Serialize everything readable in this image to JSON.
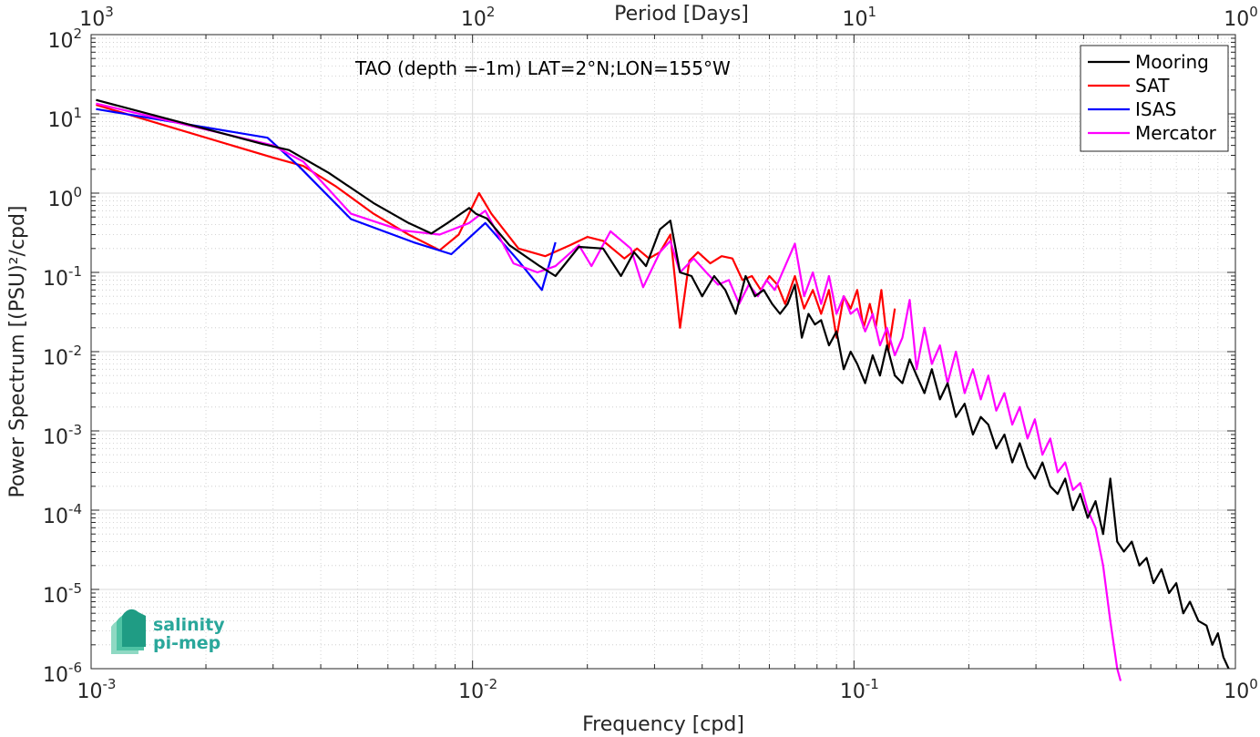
{
  "chart_data": {
    "type": "line",
    "xscale": "log",
    "yscale": "log",
    "xlim": [
      0.001,
      1
    ],
    "ylim": [
      1e-06,
      100
    ],
    "grid": true,
    "minor_grid": true,
    "xlabel": "Frequency [cpd]",
    "ylabel": "Power Spectrum [(PSU)²/cpd]",
    "top_axis_label": "Period [Days]",
    "annotation": "TAO (depth =-1m) LAT=2°N;LON=155°W",
    "legend_position": "top-right",
    "x_ticks": [
      {
        "base": "10",
        "exp": "-3",
        "value": 0.001
      },
      {
        "base": "10",
        "exp": "-2",
        "value": 0.01
      },
      {
        "base": "10",
        "exp": "-1",
        "value": 0.1
      },
      {
        "base": "10",
        "exp": "0",
        "value": 1
      }
    ],
    "top_ticks": [
      {
        "base": "10",
        "exp": "3",
        "value": 0.001
      },
      {
        "base": "10",
        "exp": "2",
        "value": 0.01
      },
      {
        "base": "10",
        "exp": "1",
        "value": 0.1
      },
      {
        "base": "10",
        "exp": "0",
        "value": 1
      }
    ],
    "y_ticks": [
      {
        "base": "10",
        "exp": "2",
        "value": 100
      },
      {
        "base": "10",
        "exp": "1",
        "value": 10
      },
      {
        "base": "10",
        "exp": "0",
        "value": 1
      },
      {
        "base": "10",
        "exp": "-1",
        "value": 0.1
      },
      {
        "base": "10",
        "exp": "-2",
        "value": 0.01
      },
      {
        "base": "10",
        "exp": "-3",
        "value": 0.001
      },
      {
        "base": "10",
        "exp": "-4",
        "value": 0.0001
      },
      {
        "base": "10",
        "exp": "-5",
        "value": 1e-05
      },
      {
        "base": "10",
        "exp": "-6",
        "value": 1e-06
      }
    ],
    "series": [
      {
        "name": "Mooring",
        "color": "#000000",
        "x": [
          0.00103,
          0.0028,
          0.0033,
          0.0042,
          0.0055,
          0.0068,
          0.0078,
          0.0086,
          0.0098,
          0.0102,
          0.0109,
          0.0125,
          0.015,
          0.0165,
          0.019,
          0.022,
          0.0245,
          0.0265,
          0.0285,
          0.031,
          0.033,
          0.035,
          0.0375,
          0.04,
          0.043,
          0.046,
          0.049,
          0.052,
          0.055,
          0.058,
          0.061,
          0.064,
          0.067,
          0.07,
          0.073,
          0.076,
          0.079,
          0.082,
          0.086,
          0.09,
          0.094,
          0.098,
          0.102,
          0.107,
          0.112,
          0.117,
          0.122,
          0.128,
          0.134,
          0.14,
          0.146,
          0.153,
          0.16,
          0.168,
          0.176,
          0.185,
          0.195,
          0.205,
          0.215,
          0.225,
          0.236,
          0.248,
          0.26,
          0.272,
          0.285,
          0.298,
          0.312,
          0.327,
          0.342,
          0.358,
          0.375,
          0.392,
          0.41,
          0.43,
          0.45,
          0.47,
          0.49,
          0.51,
          0.535,
          0.56,
          0.585,
          0.61,
          0.64,
          0.67,
          0.7,
          0.73,
          0.76,
          0.8,
          0.84,
          0.87,
          0.9,
          0.93,
          0.96
        ],
        "values": [
          15,
          4.2,
          3.5,
          1.8,
          0.75,
          0.42,
          0.31,
          0.42,
          0.65,
          0.55,
          0.48,
          0.22,
          0.12,
          0.09,
          0.21,
          0.2,
          0.09,
          0.18,
          0.12,
          0.35,
          0.45,
          0.1,
          0.09,
          0.05,
          0.09,
          0.06,
          0.03,
          0.09,
          0.05,
          0.06,
          0.04,
          0.03,
          0.04,
          0.07,
          0.015,
          0.03,
          0.022,
          0.025,
          0.012,
          0.018,
          0.006,
          0.01,
          0.007,
          0.004,
          0.009,
          0.005,
          0.012,
          0.005,
          0.004,
          0.008,
          0.005,
          0.003,
          0.006,
          0.0025,
          0.004,
          0.0015,
          0.0022,
          0.0009,
          0.0015,
          0.0012,
          0.0006,
          0.0009,
          0.0004,
          0.0007,
          0.00035,
          0.00025,
          0.0004,
          0.0002,
          0.00016,
          0.00025,
          0.0001,
          0.00016,
          8e-05,
          0.00013,
          5e-05,
          0.00025,
          4e-05,
          3e-05,
          4e-05,
          2e-05,
          2.5e-05,
          1.2e-05,
          1.8e-05,
          9e-06,
          1.2e-05,
          5e-06,
          7e-06,
          4e-06,
          3.5e-06,
          2e-06,
          2.8e-06,
          1.4e-06,
          1e-06
        ]
      },
      {
        "name": "SAT",
        "color": "#ff0000",
        "x": [
          0.00103,
          0.003,
          0.0036,
          0.0044,
          0.0055,
          0.0068,
          0.0082,
          0.0092,
          0.0104,
          0.0112,
          0.0132,
          0.0155,
          0.018,
          0.02,
          0.022,
          0.025,
          0.027,
          0.029,
          0.031,
          0.033,
          0.035,
          0.037,
          0.039,
          0.042,
          0.045,
          0.048,
          0.051,
          0.054,
          0.057,
          0.06,
          0.063,
          0.066,
          0.07,
          0.074,
          0.078,
          0.082,
          0.086,
          0.09,
          0.094,
          0.098,
          0.102,
          0.106,
          0.11,
          0.114,
          0.118,
          0.123,
          0.128
        ],
        "values": [
          13,
          2.8,
          2.2,
          1.2,
          0.55,
          0.3,
          0.19,
          0.3,
          1.0,
          0.55,
          0.2,
          0.16,
          0.22,
          0.28,
          0.25,
          0.15,
          0.2,
          0.15,
          0.18,
          0.3,
          0.02,
          0.14,
          0.18,
          0.13,
          0.16,
          0.15,
          0.08,
          0.09,
          0.06,
          0.09,
          0.07,
          0.04,
          0.09,
          0.035,
          0.06,
          0.03,
          0.06,
          0.015,
          0.05,
          0.035,
          0.06,
          0.02,
          0.04,
          0.02,
          0.06,
          0.01,
          0.035
        ]
      },
      {
        "name": "ISAS",
        "color": "#0000ff",
        "x": [
          0.00103,
          0.0029,
          0.0035,
          0.0048,
          0.007,
          0.0088,
          0.0108,
          0.0132,
          0.0152,
          0.0165
        ],
        "values": [
          11.5,
          5.0,
          2.2,
          0.47,
          0.24,
          0.17,
          0.42,
          0.14,
          0.06,
          0.24
        ]
      },
      {
        "name": "Mercator",
        "color": "#ff00ff",
        "x": [
          0.00103,
          0.003,
          0.0036,
          0.0048,
          0.0065,
          0.0082,
          0.0098,
          0.0108,
          0.0128,
          0.0148,
          0.0165,
          0.019,
          0.0205,
          0.023,
          0.026,
          0.028,
          0.031,
          0.033,
          0.035,
          0.038,
          0.041,
          0.044,
          0.047,
          0.05,
          0.053,
          0.056,
          0.059,
          0.062,
          0.066,
          0.07,
          0.074,
          0.078,
          0.082,
          0.086,
          0.09,
          0.094,
          0.098,
          0.102,
          0.107,
          0.112,
          0.117,
          0.122,
          0.128,
          0.134,
          0.14,
          0.146,
          0.153,
          0.16,
          0.168,
          0.176,
          0.185,
          0.195,
          0.205,
          0.215,
          0.225,
          0.236,
          0.248,
          0.26,
          0.272,
          0.285,
          0.298,
          0.312,
          0.327,
          0.342,
          0.358,
          0.375,
          0.392,
          0.41,
          0.43,
          0.45,
          0.47,
          0.49,
          0.5
        ],
        "values": [
          13.5,
          4.0,
          2.5,
          0.55,
          0.34,
          0.3,
          0.42,
          0.6,
          0.13,
          0.1,
          0.12,
          0.22,
          0.12,
          0.33,
          0.2,
          0.065,
          0.18,
          0.25,
          0.1,
          0.15,
          0.1,
          0.07,
          0.08,
          0.04,
          0.07,
          0.05,
          0.08,
          0.06,
          0.12,
          0.23,
          0.05,
          0.1,
          0.04,
          0.09,
          0.03,
          0.05,
          0.03,
          0.035,
          0.018,
          0.03,
          0.012,
          0.02,
          0.009,
          0.015,
          0.045,
          0.006,
          0.02,
          0.007,
          0.012,
          0.004,
          0.01,
          0.003,
          0.006,
          0.0025,
          0.005,
          0.0018,
          0.003,
          0.0012,
          0.002,
          0.0008,
          0.0014,
          0.0005,
          0.0008,
          0.0003,
          0.0004,
          0.00018,
          0.00022,
          0.0001,
          6e-05,
          2e-05,
          4e-06,
          1e-06,
          7e-07
        ]
      }
    ]
  },
  "logo": {
    "line1": "salinity",
    "line2": "pi-mep"
  }
}
